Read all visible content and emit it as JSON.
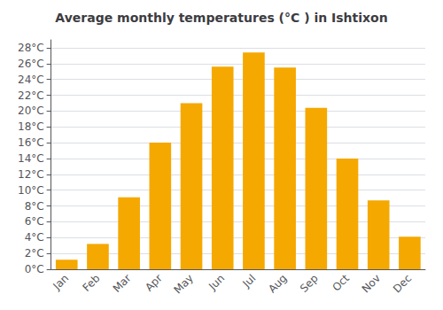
{
  "chart_data": {
    "type": "bar",
    "title": "Average monthly temperatures (°C ) in Ishtixon",
    "categories": [
      "Jan",
      "Feb",
      "Mar",
      "Apr",
      "May",
      "Jun",
      "Jul",
      "Aug",
      "Sep",
      "Oct",
      "Nov",
      "Dec"
    ],
    "values": [
      1.2,
      3.2,
      9.1,
      16.0,
      21.0,
      25.6,
      27.4,
      25.5,
      20.4,
      14.0,
      8.7,
      4.1
    ],
    "color": "#F5A800",
    "ylim": [
      0,
      29
    ],
    "yticks": [
      {
        "value": 0,
        "label": "0°C"
      },
      {
        "value": 2,
        "label": "2°C"
      },
      {
        "value": 4,
        "label": "4°C"
      },
      {
        "value": 6,
        "label": "6°C"
      },
      {
        "value": 8,
        "label": "8°C"
      },
      {
        "value": 10,
        "label": "10°C"
      },
      {
        "value": 12,
        "label": "12°C"
      },
      {
        "value": 14,
        "label": "14°C"
      },
      {
        "value": 16,
        "label": "16°C"
      },
      {
        "value": 18,
        "label": "18°C"
      },
      {
        "value": 20,
        "label": "20°C"
      },
      {
        "value": 22,
        "label": "22°C"
      },
      {
        "value": 24,
        "label": "24°C"
      },
      {
        "value": 26,
        "label": "26°C"
      },
      {
        "value": 28,
        "label": "28°C"
      }
    ],
    "grid": true
  }
}
